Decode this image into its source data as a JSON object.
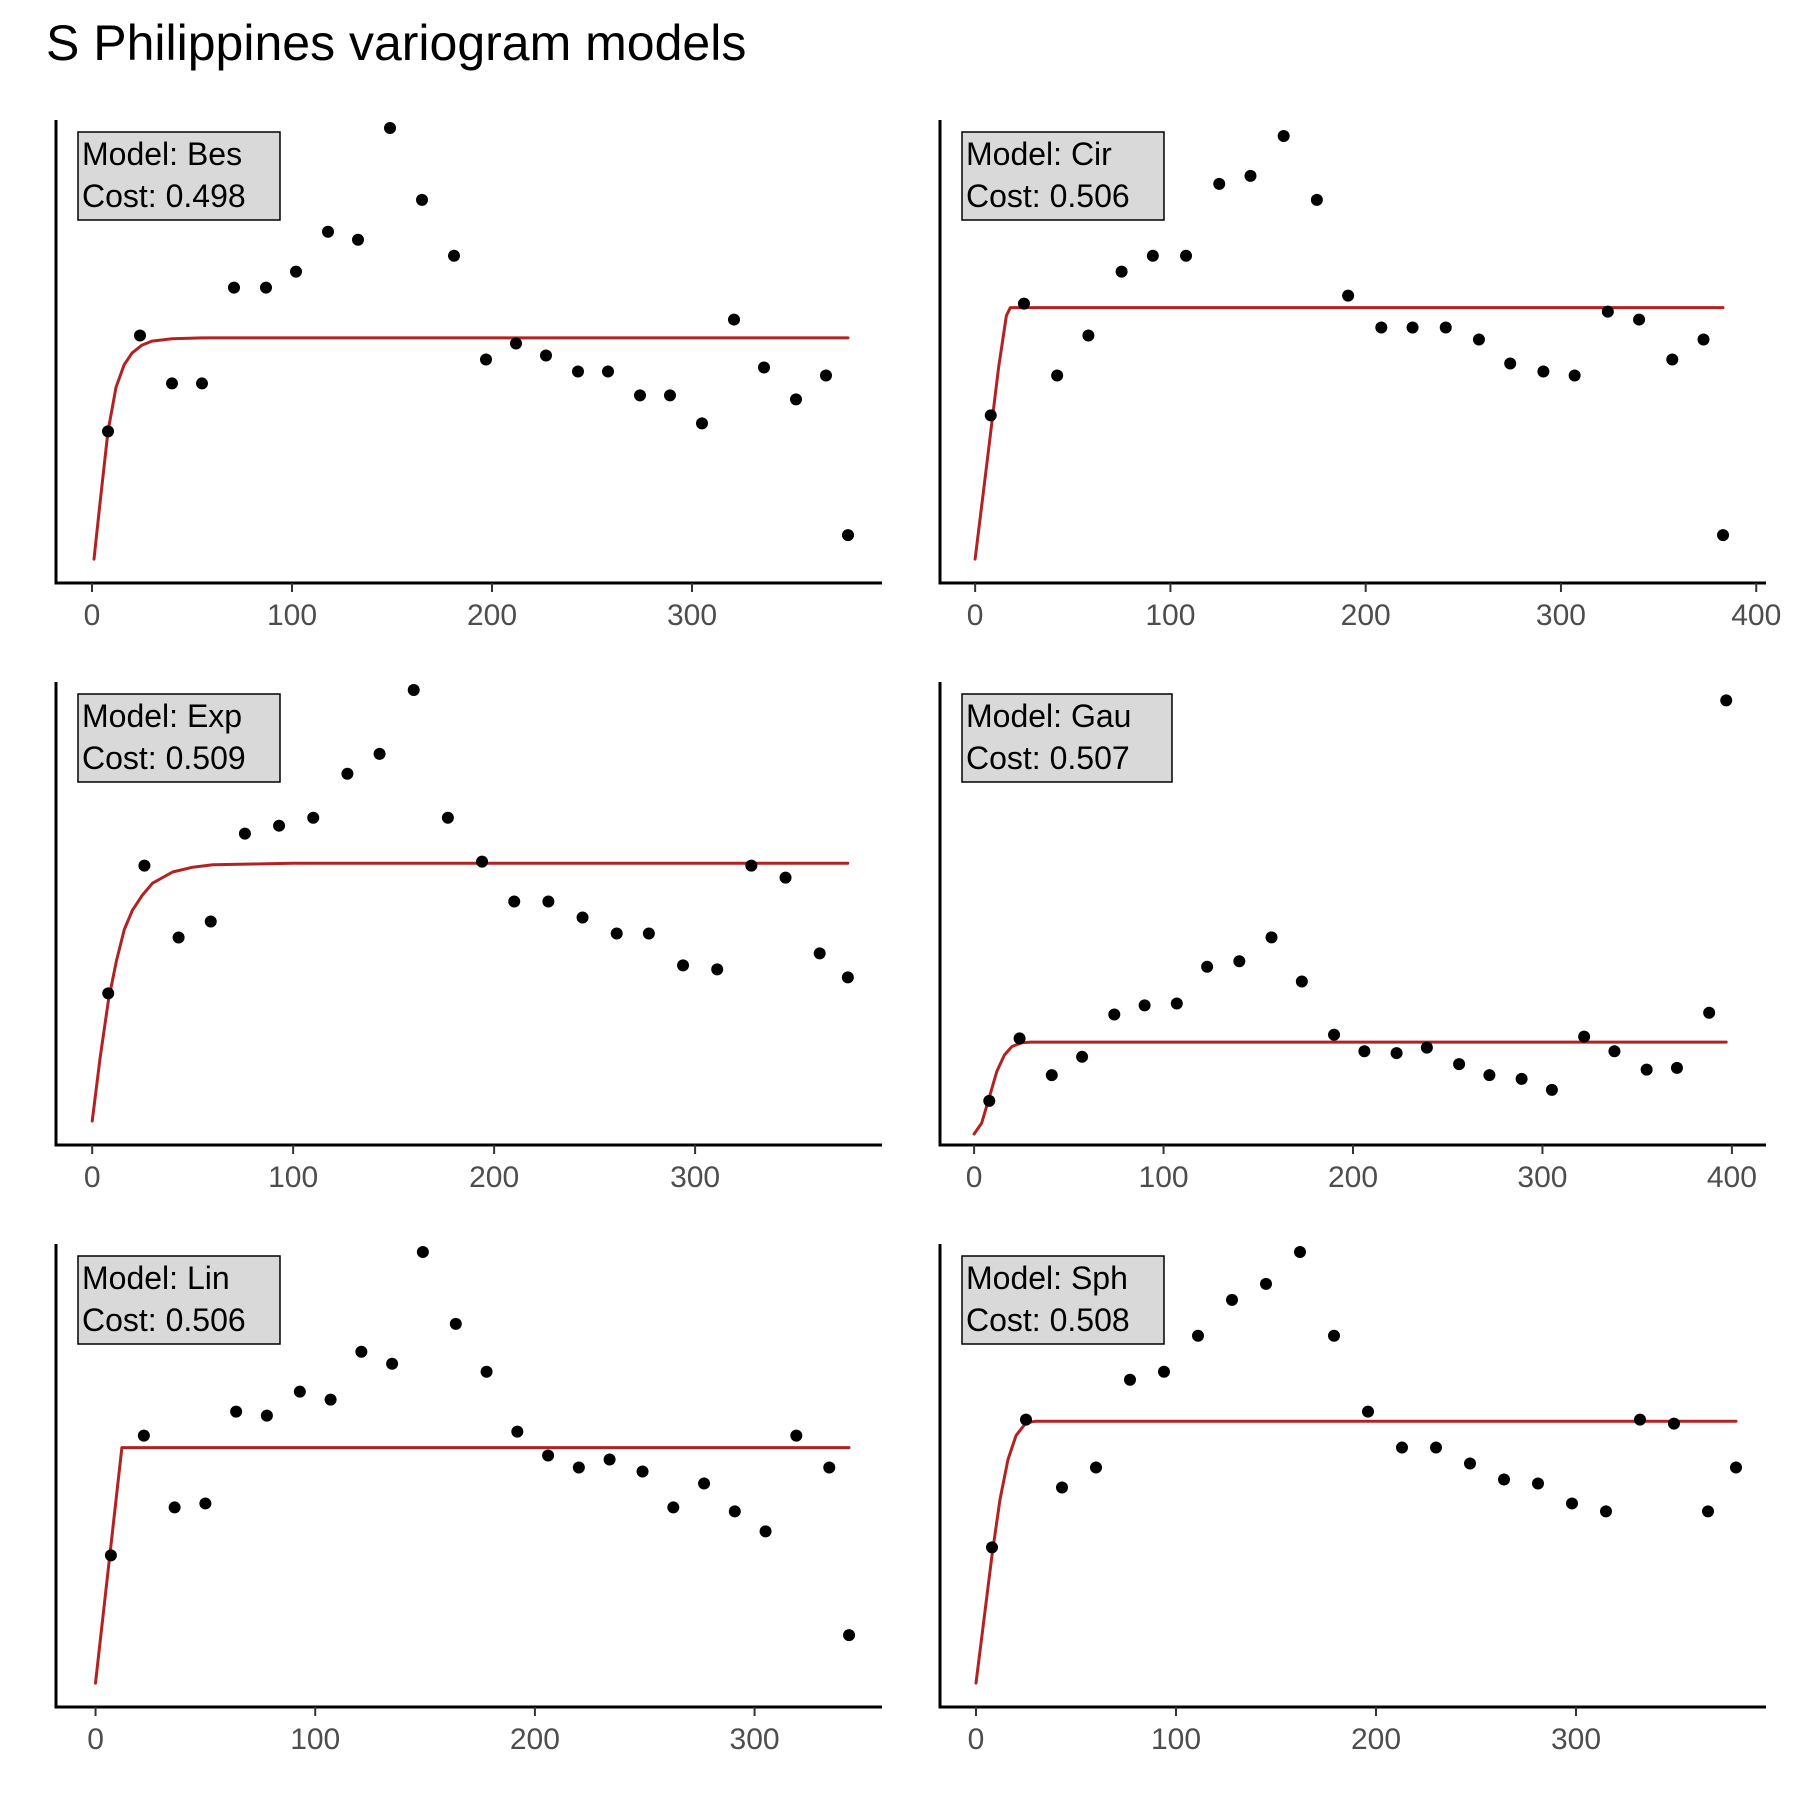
{
  "chart_data": {
    "type": "scatter",
    "title": "S Philippines variogram models",
    "colors": {
      "model_line": "#B22222",
      "points": "#000000",
      "label_fill": "#D9D9D9"
    },
    "y_axis_labels_shown": false,
    "grid": false,
    "panels": [
      {
        "model_label": "Model: Bes",
        "cost_label": "Cost: 0.498",
        "model": "Bes",
        "xlim": [
          -18,
          395
        ],
        "ylim": [
          0.68,
          1.26
        ],
        "x_ticks": [
          0,
          100,
          200,
          300
        ],
        "x_tick_labels": [
          "0",
          "100",
          "200",
          "300"
        ],
        "points_x": [
          8,
          24,
          40,
          55,
          71,
          87,
          102,
          118,
          133,
          149,
          165,
          181,
          197,
          212,
          227,
          243,
          258,
          274,
          289,
          305,
          321,
          336,
          352,
          367,
          378
        ],
        "points_y": [
          0.87,
          0.99,
          0.93,
          0.93,
          1.05,
          1.05,
          1.07,
          1.12,
          1.11,
          1.25,
          1.16,
          1.09,
          0.96,
          0.98,
          0.965,
          0.945,
          0.945,
          0.915,
          0.915,
          0.88,
          1.01,
          0.95,
          0.91,
          0.94,
          0.74
        ],
        "model_curve": {
          "x": [
            1,
            4,
            8,
            12,
            16,
            20,
            25,
            30,
            40,
            55,
            80,
            120,
            200,
            300,
            378
          ],
          "y": [
            0.71,
            0.78,
            0.87,
            0.925,
            0.953,
            0.968,
            0.978,
            0.983,
            0.986,
            0.987,
            0.987,
            0.987,
            0.987,
            0.987,
            0.987
          ]
        }
      },
      {
        "model_label": "Model: Cir",
        "cost_label": "Cost: 0.506",
        "model": "Cir",
        "xlim": [
          -18,
          405
        ],
        "ylim": [
          0.68,
          1.26
        ],
        "x_ticks": [
          0,
          100,
          200,
          300,
          400
        ],
        "x_tick_labels": [
          "0",
          "100",
          "200",
          "300",
          "400"
        ],
        "points_x": [
          8,
          25,
          42,
          58,
          75,
          91,
          108,
          125,
          141,
          158,
          175,
          191,
          208,
          224,
          241,
          258,
          274,
          291,
          307,
          324,
          340,
          357,
          373,
          383
        ],
        "points_y": [
          0.89,
          1.03,
          0.94,
          0.99,
          1.07,
          1.09,
          1.09,
          1.18,
          1.19,
          1.24,
          1.16,
          1.04,
          1.0,
          1.0,
          1.0,
          0.985,
          0.955,
          0.945,
          0.94,
          1.02,
          1.01,
          0.96,
          0.985,
          0.74
        ],
        "model_curve": {
          "x": [
            0,
            4,
            8,
            12,
            16,
            18,
            30,
            100,
            200,
            300,
            383
          ],
          "y": [
            0.71,
            0.79,
            0.87,
            0.95,
            1.015,
            1.025,
            1.025,
            1.025,
            1.025,
            1.025,
            1.025
          ]
        }
      },
      {
        "model_label": "Model: Exp",
        "cost_label": "Cost: 0.509",
        "model": "Exp",
        "xlim": [
          -18,
          393
        ],
        "ylim": [
          0.68,
          1.26
        ],
        "x_ticks": [
          0,
          100,
          200,
          300
        ],
        "x_tick_labels": [
          "0",
          "100",
          "200",
          "300"
        ],
        "points_x": [
          8,
          26,
          43,
          59,
          76,
          93,
          110,
          127,
          143,
          160,
          177,
          194,
          210,
          227,
          244,
          261,
          277,
          294,
          311,
          328,
          345,
          362,
          376
        ],
        "points_y": [
          0.87,
          1.03,
          0.94,
          0.96,
          1.07,
          1.08,
          1.09,
          1.145,
          1.17,
          1.25,
          1.09,
          1.035,
          0.985,
          0.985,
          0.965,
          0.945,
          0.945,
          0.905,
          0.9,
          1.03,
          1.015,
          0.92,
          0.89
        ],
        "model_curve": {
          "x": [
            0,
            4,
            8,
            12,
            16,
            20,
            25,
            30,
            40,
            50,
            60,
            80,
            100,
            150,
            200,
            300,
            376
          ],
          "y": [
            0.71,
            0.79,
            0.86,
            0.91,
            0.95,
            0.974,
            0.993,
            1.008,
            1.022,
            1.028,
            1.031,
            1.032,
            1.033,
            1.033,
            1.033,
            1.033,
            1.033
          ]
        }
      },
      {
        "model_label": "Model: Gau",
        "cost_label": "Cost: 0.507",
        "model": "Gau",
        "xlim": [
          -18,
          418
        ],
        "ylim": [
          0.68,
          1.94
        ],
        "x_ticks": [
          0,
          100,
          200,
          300,
          400
        ],
        "x_tick_labels": [
          "0",
          "100",
          "200",
          "300",
          "400"
        ],
        "points_x": [
          8,
          24,
          41,
          57,
          74,
          90,
          107,
          123,
          140,
          157,
          173,
          190,
          206,
          223,
          239,
          256,
          272,
          289,
          305,
          322,
          338,
          355,
          371,
          388,
          397
        ],
        "points_y": [
          0.8,
          0.97,
          0.87,
          0.92,
          1.035,
          1.06,
          1.065,
          1.165,
          1.18,
          1.245,
          1.125,
          0.98,
          0.935,
          0.93,
          0.945,
          0.9,
          0.87,
          0.86,
          0.83,
          0.975,
          0.935,
          0.885,
          0.89,
          1.04,
          1.89
        ],
        "model_curve": {
          "x": [
            0,
            4,
            8,
            12,
            16,
            20,
            25,
            30,
            50,
            100,
            200,
            300,
            397
          ],
          "y": [
            0.71,
            0.74,
            0.81,
            0.88,
            0.925,
            0.948,
            0.958,
            0.96,
            0.96,
            0.96,
            0.96,
            0.96,
            0.96
          ]
        }
      },
      {
        "model_label": "Model: Lin",
        "cost_label": "Cost: 0.506",
        "model": "Lin",
        "xlim": [
          -18,
          358
        ],
        "ylim": [
          0.68,
          1.26
        ],
        "x_ticks": [
          0,
          100,
          200,
          300
        ],
        "x_tick_labels": [
          "0",
          "100",
          "200",
          "300"
        ],
        "points_x": [
          7,
          22,
          36,
          50,
          64,
          78,
          93,
          107,
          121,
          135,
          149,
          164,
          178,
          192,
          206,
          220,
          234,
          249,
          263,
          277,
          291,
          305,
          319,
          334,
          343
        ],
        "points_y": [
          0.87,
          1.02,
          0.93,
          0.935,
          1.05,
          1.045,
          1.075,
          1.065,
          1.125,
          1.11,
          1.25,
          1.16,
          1.1,
          1.025,
          0.995,
          0.98,
          0.99,
          0.975,
          0.93,
          0.96,
          0.925,
          0.9,
          1.02,
          0.98,
          0.77
        ],
        "model_curve": {
          "x": [
            0,
            12,
            20,
            100,
            200,
            300,
            343
          ],
          "y": [
            0.71,
            1.005,
            1.005,
            1.005,
            1.005,
            1.005,
            1.005
          ]
        }
      },
      {
        "model_label": "Model: Sph",
        "cost_label": "Cost: 0.508",
        "model": "Sph",
        "xlim": [
          -18,
          395
        ],
        "ylim": [
          0.68,
          1.26
        ],
        "x_ticks": [
          0,
          100,
          200,
          300
        ],
        "x_tick_labels": [
          "0",
          "100",
          "200",
          "300"
        ],
        "points_x": [
          8,
          25,
          43,
          60,
          77,
          94,
          111,
          128,
          145,
          162,
          179,
          196,
          213,
          230,
          247,
          264,
          281,
          298,
          315,
          332,
          349,
          366,
          380
        ],
        "points_y": [
          0.88,
          1.04,
          0.955,
          0.98,
          1.09,
          1.1,
          1.145,
          1.19,
          1.21,
          1.25,
          1.145,
          1.05,
          1.005,
          1.005,
          0.985,
          0.965,
          0.96,
          0.935,
          0.925,
          1.04,
          1.035,
          0.925,
          0.98
        ],
        "model_curve": {
          "x": [
            0,
            4,
            8,
            12,
            16,
            20,
            25,
            30,
            60,
            100,
            200,
            300,
            380
          ],
          "y": [
            0.71,
            0.79,
            0.87,
            0.94,
            0.99,
            1.02,
            1.036,
            1.038,
            1.038,
            1.038,
            1.038,
            1.038,
            1.038
          ]
        }
      }
    ]
  }
}
